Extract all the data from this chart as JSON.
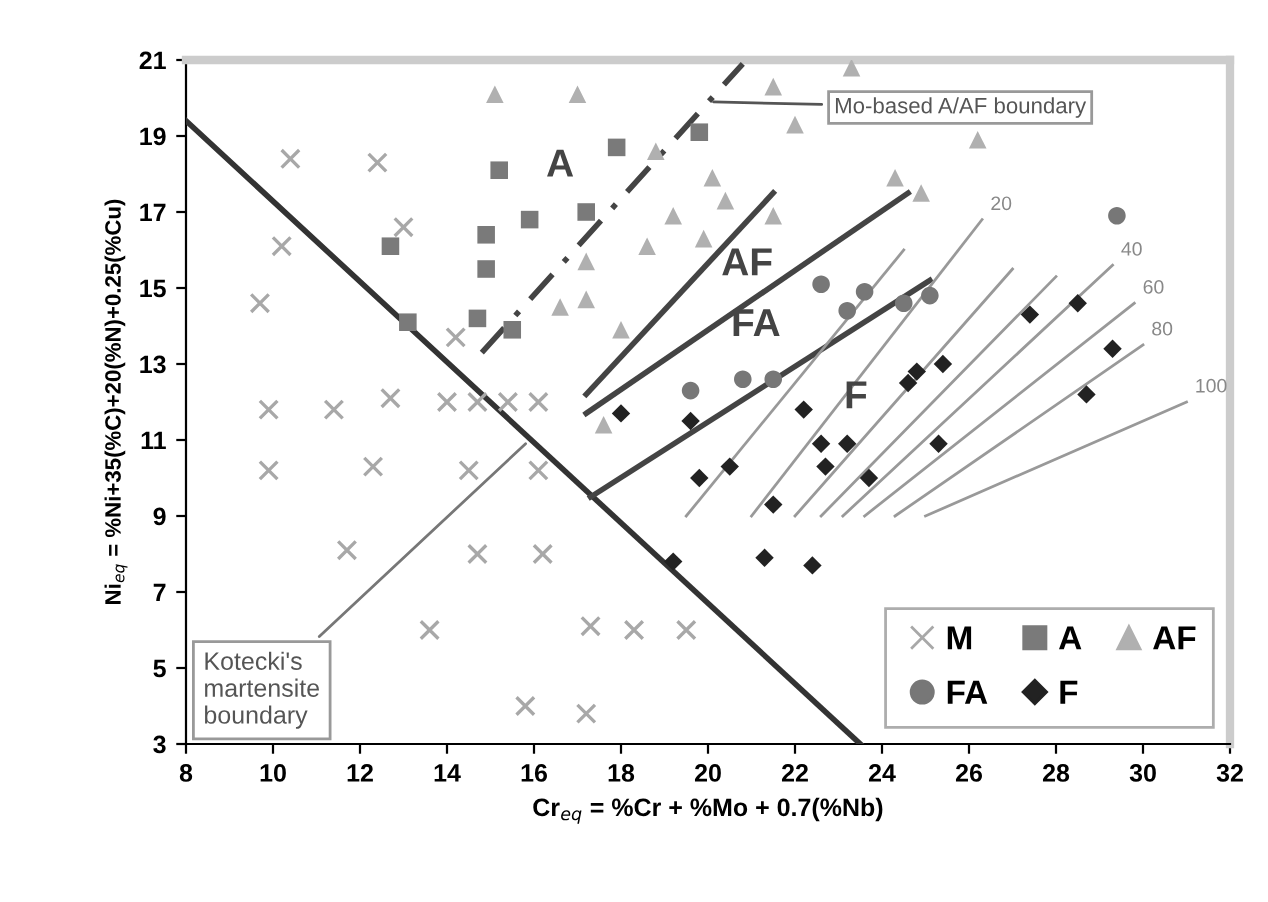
{
  "chart_data": {
    "type": "scatter",
    "xlabel": "Cr$_{eq}$ = %Cr + %Mo + 0.7(%Nb)",
    "ylabel": "Ni$_{eq}$ = %Ni+35(%C)+20(%N)+0.25(%Cu)",
    "xlim": [
      8,
      32
    ],
    "xticks": [
      8,
      10,
      12,
      14,
      16,
      18,
      20,
      22,
      24,
      26,
      28,
      30,
      32
    ],
    "ylim": [
      3,
      21
    ],
    "yticks": [
      3,
      5,
      7,
      9,
      11,
      13,
      15,
      17,
      19,
      21
    ],
    "grid": false,
    "legend": "bottom right",
    "series": [
      {
        "name": "M",
        "marker": "cross",
        "color": "#a8a8a8",
        "x": [
          9.7,
          10.4,
          10.2,
          12.4,
          13.0,
          14.2,
          9.9,
          9.9,
          11.4,
          12.7,
          11.7,
          12.3,
          14.0,
          14.7,
          15.4,
          16.1,
          14.5,
          14.7,
          16.2,
          13.6,
          15.8,
          16.1,
          17.3,
          18.3,
          19.5,
          17.2
        ],
        "values": [
          14.6,
          18.4,
          16.1,
          18.3,
          16.6,
          13.7,
          11.8,
          10.2,
          11.8,
          12.1,
          8.1,
          10.3,
          12.0,
          12.0,
          12.0,
          12.0,
          10.2,
          8.0,
          8.0,
          6.0,
          4.0,
          10.2,
          6.1,
          6.0,
          6.0,
          3.8
        ]
      },
      {
        "name": "A",
        "marker": "square",
        "color": "#7a7a7a",
        "x": [
          12.7,
          13.1,
          15.2,
          14.9,
          14.9,
          14.7,
          15.5,
          15.9,
          17.9,
          17.2,
          19.8
        ],
        "values": [
          16.1,
          14.1,
          18.1,
          16.4,
          15.5,
          14.2,
          13.9,
          16.8,
          18.7,
          17.0,
          19.1
        ]
      },
      {
        "name": "AF",
        "marker": "triangle",
        "color": "#b0b0b0",
        "x": [
          15.1,
          17.0,
          21.5,
          23.3,
          22.0,
          26.2,
          18.8,
          20.1,
          20.4,
          21.5,
          19.2,
          19.9,
          18.6,
          17.2,
          16.6,
          17.2,
          18.0,
          24.3,
          24.9,
          17.6
        ],
        "values": [
          20.1,
          20.1,
          20.3,
          20.8,
          19.3,
          18.9,
          18.6,
          17.9,
          17.3,
          16.9,
          16.9,
          16.3,
          16.1,
          15.7,
          14.5,
          14.7,
          13.9,
          17.9,
          17.5,
          11.4
        ]
      },
      {
        "name": "FA",
        "marker": "circle",
        "color": "#777777",
        "x": [
          22.6,
          23.6,
          23.2,
          24.5,
          25.1,
          19.6,
          20.8,
          21.5,
          29.4
        ],
        "values": [
          15.1,
          14.9,
          14.4,
          14.6,
          14.8,
          12.3,
          12.6,
          12.6,
          16.9
        ]
      },
      {
        "name": "F",
        "marker": "diamond",
        "color": "#222222",
        "x": [
          18.0,
          19.6,
          22.2,
          19.8,
          20.5,
          22.6,
          23.2,
          22.7,
          23.7,
          21.5,
          19.2,
          21.3,
          22.4,
          24.6,
          24.8,
          25.4,
          25.3,
          27.4,
          28.5,
          28.7,
          29.3
        ],
        "values": [
          11.7,
          11.5,
          11.8,
          10.0,
          10.3,
          10.9,
          10.9,
          10.3,
          10.0,
          9.3,
          7.8,
          7.9,
          7.7,
          12.5,
          12.8,
          13.0,
          10.9,
          14.3,
          14.6,
          12.2,
          13.4
        ]
      },
      {
        "type": "line",
        "color": "#333333",
        "x": [
          8,
          23.5
        ],
        "values": [
          19.4,
          3
        ]
      },
      {
        "type": "line",
        "line_style": "dashed",
        "color": "#444444",
        "x": [
          14.8,
          20.8
        ],
        "values": [
          13.3,
          20.9
        ]
      },
      {
        "type": "line",
        "color": "#444444",
        "x": [
          17.2,
          21.5
        ],
        "values": [
          12.2,
          17.5
        ]
      },
      {
        "type": "line",
        "color": "#444444",
        "x": [
          17.2,
          24.6
        ],
        "values": [
          11.7,
          17.5
        ]
      },
      {
        "type": "line",
        "color": "#444444",
        "x": [
          17.3,
          25.1
        ],
        "values": [
          9.5,
          15.2
        ]
      },
      {
        "type": "line",
        "color": "#999999",
        "x": [
          19.5,
          24.5
        ],
        "values": [
          9.0,
          16.0
        ]
      },
      {
        "type": "line",
        "name": "20",
        "color": "#999999",
        "x": [
          21.0,
          26.3
        ],
        "values": [
          9.0,
          16.8
        ]
      },
      {
        "type": "line",
        "color": "#999999",
        "x": [
          22.0,
          27.0
        ],
        "values": [
          9.0,
          15.5
        ]
      },
      {
        "type": "line",
        "color": "#999999",
        "x": [
          22.6,
          28.0
        ],
        "values": [
          9.0,
          15.3
        ]
      },
      {
        "type": "line",
        "name": "40",
        "color": "#999999",
        "x": [
          23.1,
          29.3
        ],
        "values": [
          9.0,
          15.6
        ]
      },
      {
        "type": "line",
        "name": "60",
        "color": "#999999",
        "x": [
          23.6,
          29.8
        ],
        "values": [
          9.0,
          14.6
        ]
      },
      {
        "type": "line",
        "name": "80",
        "color": "#999999",
        "x": [
          24.3,
          30.0
        ],
        "values": [
          9.0,
          13.5
        ]
      },
      {
        "type": "line",
        "name": "100",
        "color": "#999999",
        "x": [
          25.0,
          31.0
        ],
        "values": [
          9.0,
          12.0
        ]
      }
    ],
    "annotations": [
      "A",
      "AF",
      "FA",
      "F",
      {
        "text": "Mo-based A/AF boundary",
        "x": 20.0,
        "y": 19.9
      },
      {
        "text": "Kotecki's\nmartensite\nboundary",
        "x": 15.9,
        "y": 11.0
      }
    ]
  }
}
